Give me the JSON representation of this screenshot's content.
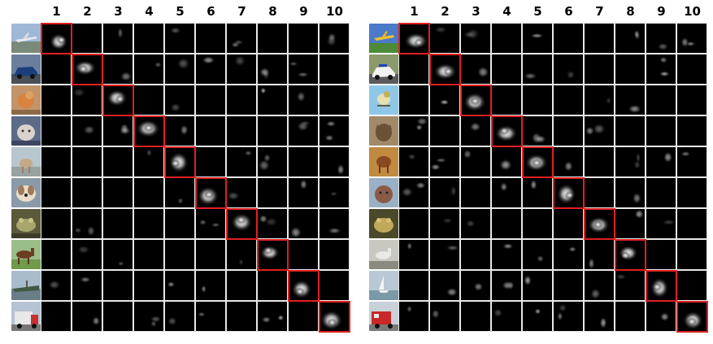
{
  "column_labels": [
    "1",
    "2",
    "3",
    "4",
    "5",
    "6",
    "7",
    "8",
    "9",
    "10"
  ],
  "highlight_color": "#e02020",
  "left_panel": {
    "row_images": [
      "airplane-image",
      "car-image",
      "bird-image",
      "cat-image",
      "deer-image",
      "dog-image",
      "frog-image",
      "horse-image",
      "ship-image",
      "truck-image"
    ]
  },
  "right_panel": {
    "row_images": [
      "airplane-image",
      "car-image",
      "bird-image",
      "cat-image",
      "deer-image",
      "dog-image",
      "frog-image",
      "horse-image",
      "ship-image",
      "truck-image"
    ]
  }
}
